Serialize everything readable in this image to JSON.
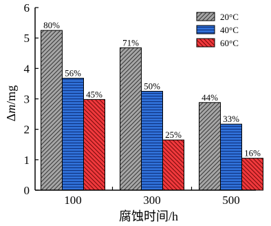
{
  "chart_data": {
    "type": "bar",
    "categories": [
      "100",
      "300",
      "500"
    ],
    "series": [
      {
        "name": "20°C",
        "values": [
          5.25,
          4.68,
          2.88
        ],
        "labels": [
          "80%",
          "71%",
          "44%"
        ],
        "color": "#a6a6a6",
        "pattern": "diagonal-right"
      },
      {
        "name": "40°C",
        "values": [
          3.68,
          3.25,
          2.17
        ],
        "labels": [
          "56%",
          "50%",
          "33%"
        ],
        "color": "#2f6fd6",
        "pattern": "horizontal"
      },
      {
        "name": "60°C",
        "values": [
          2.98,
          1.65,
          1.05
        ],
        "labels": [
          "45%",
          "25%",
          "16%"
        ],
        "color": "#f0393d",
        "pattern": "diagonal-left"
      }
    ],
    "xlabel": "腐蚀时间/h",
    "ylabel_symbol": "Δ",
    "ylabel_var": "m",
    "ylabel_unit": "/mg",
    "ylim": [
      0,
      6
    ],
    "yticks": [
      "0",
      "1",
      "2",
      "3",
      "4",
      "5",
      "6"
    ],
    "grid": false,
    "legend_position": "top-right"
  }
}
